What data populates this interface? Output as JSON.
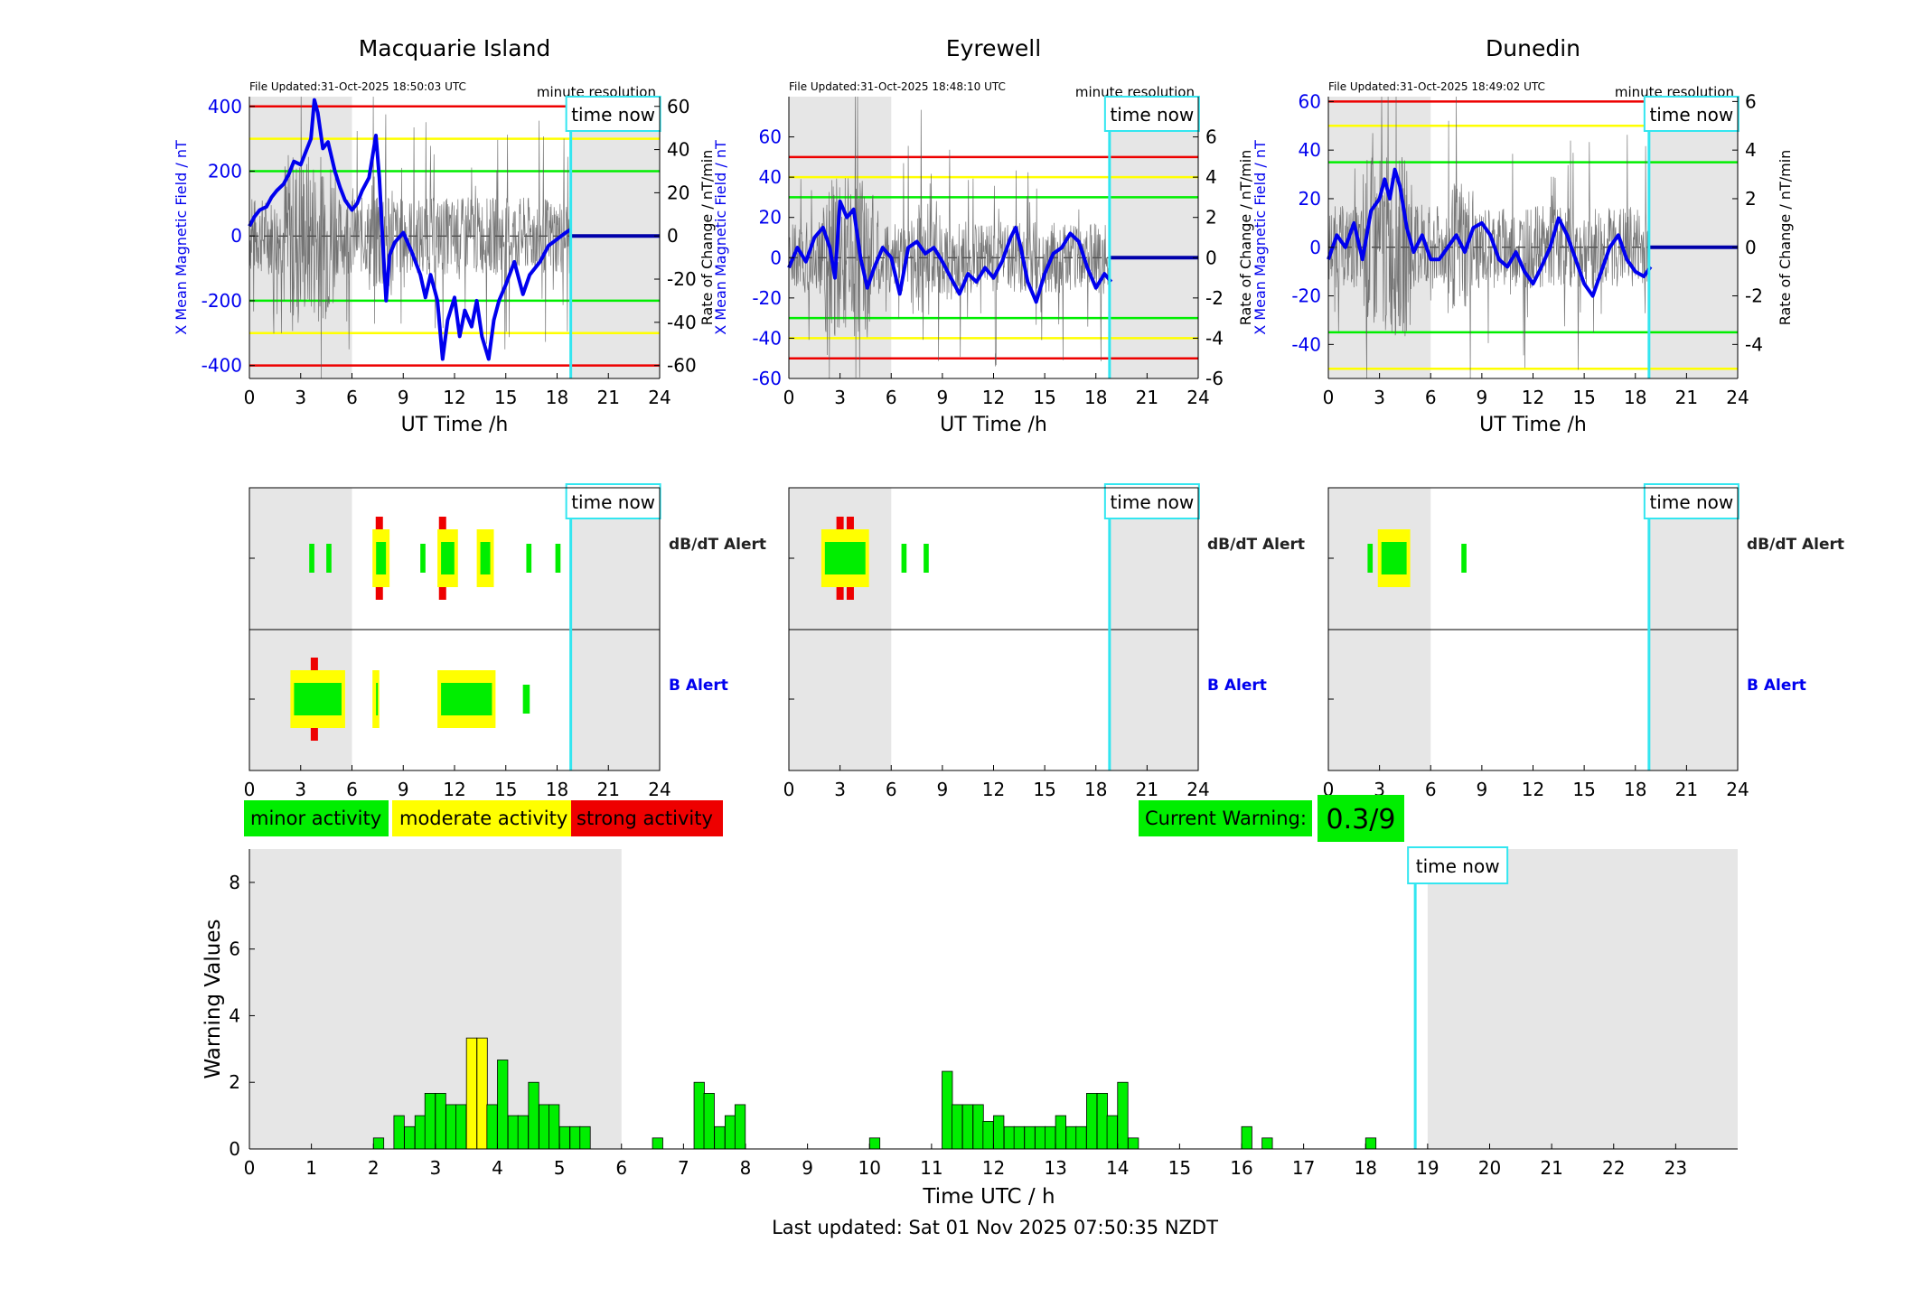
{
  "footer": {
    "last_updated": "Last updated: Sat 01 Nov 2025 07:50:35 NZDT"
  },
  "now_label": "time now",
  "minute_resolution": "minute resolution",
  "colors": {
    "x_mean": "#0000ee",
    "minor": "#00ee00",
    "moderate": "#ffff00",
    "strong": "#ee0000",
    "now_line": "#33e6f0",
    "shade": "#e6e6e6"
  },
  "legend": {
    "minor": "minor activity",
    "moderate": "moderate activity",
    "strong": "strong activity"
  },
  "current_warning": {
    "label": "Current Warning:",
    "value": "0.3/9"
  },
  "stations": [
    {
      "name": "Macquarie Island",
      "file_updated": "File Updated:31-Oct-2025 18:50:03 UTC",
      "left_ylabel": "X Mean Magnetic Field / nT",
      "right_ylabel": "Rate of Change / nT/min",
      "xlabel": "UT Time /h",
      "xticks": [
        0,
        3,
        6,
        9,
        12,
        15,
        18,
        21,
        24
      ],
      "left_yticks": [
        400,
        200,
        0,
        -200,
        -400
      ],
      "right_yticks": [
        60,
        40,
        20,
        0,
        -20,
        -40,
        -60
      ],
      "left_ylim": [
        -440,
        430
      ],
      "right_ylim": [
        -66,
        64.5
      ],
      "right_bottom_tick": "-60",
      "thresholds": {
        "minor": 200,
        "moderate": 300,
        "strong": 400
      },
      "rate_amp": 18,
      "x_mean_curve": [
        [
          0,
          30
        ],
        [
          0.3,
          60
        ],
        [
          0.6,
          80
        ],
        [
          1,
          90
        ],
        [
          1.3,
          120
        ],
        [
          1.6,
          140
        ],
        [
          2,
          160
        ],
        [
          2.3,
          190
        ],
        [
          2.6,
          230
        ],
        [
          3,
          220
        ],
        [
          3.3,
          260
        ],
        [
          3.6,
          300
        ],
        [
          3.8,
          420
        ],
        [
          4,
          380
        ],
        [
          4.3,
          270
        ],
        [
          4.6,
          290
        ],
        [
          5,
          200
        ],
        [
          5.3,
          150
        ],
        [
          5.6,
          110
        ],
        [
          6,
          80
        ],
        [
          6.3,
          100
        ],
        [
          6.6,
          140
        ],
        [
          7,
          180
        ],
        [
          7.4,
          310
        ],
        [
          7.6,
          180
        ],
        [
          7.8,
          -20
        ],
        [
          8,
          -200
        ],
        [
          8.2,
          -60
        ],
        [
          8.5,
          -20
        ],
        [
          9,
          10
        ],
        [
          9.5,
          -50
        ],
        [
          10,
          -120
        ],
        [
          10.3,
          -190
        ],
        [
          10.6,
          -120
        ],
        [
          11,
          -200
        ],
        [
          11.3,
          -380
        ],
        [
          11.6,
          -260
        ],
        [
          12,
          -190
        ],
        [
          12.3,
          -310
        ],
        [
          12.6,
          -230
        ],
        [
          13,
          -280
        ],
        [
          13.3,
          -200
        ],
        [
          13.6,
          -310
        ],
        [
          14,
          -380
        ],
        [
          14.3,
          -260
        ],
        [
          14.6,
          -200
        ],
        [
          15,
          -150
        ],
        [
          15.5,
          -80
        ],
        [
          16,
          -180
        ],
        [
          16.4,
          -120
        ],
        [
          17,
          -80
        ],
        [
          17.5,
          -30
        ],
        [
          18,
          -10
        ],
        [
          18.5,
          10
        ],
        [
          18.8,
          20
        ]
      ],
      "baseline_after_now": 0,
      "dbdt_segments": [
        {
          "start": 3.5,
          "end": 3.8,
          "level": "minor"
        },
        {
          "start": 4.5,
          "end": 4.8,
          "level": "minor"
        },
        {
          "start": 7.2,
          "end": 8.2,
          "level": "moderate"
        },
        {
          "start": 10,
          "end": 10.3,
          "level": "minor"
        },
        {
          "start": 11,
          "end": 12.2,
          "level": "moderate"
        },
        {
          "start": 13.3,
          "end": 14.3,
          "level": "moderate"
        },
        {
          "start": 16.2,
          "end": 16.5,
          "level": "minor"
        },
        {
          "start": 17.9,
          "end": 18.2,
          "level": "minor"
        }
      ],
      "dbdt_strong": [
        7.6,
        11.3
      ],
      "b_segments": [
        {
          "start": 2.4,
          "end": 5.6,
          "level": "moderate"
        },
        {
          "start": 7.2,
          "end": 7.6,
          "level": "moderate"
        },
        {
          "start": 11,
          "end": 14.4,
          "level": "moderate"
        },
        {
          "start": 16,
          "end": 16.4,
          "level": "minor"
        }
      ],
      "b_strong": [
        3.8
      ]
    },
    {
      "name": "Eyrewell",
      "file_updated": "File Updated:31-Oct-2025 18:48:10 UTC",
      "left_ylabel": "X Mean Magnetic Field / nT",
      "right_ylabel": "Rate of Change / nT/min",
      "xlabel": "UT Time /h",
      "xticks": [
        0,
        3,
        6,
        9,
        12,
        15,
        18,
        21,
        24
      ],
      "left_yticks": [
        60,
        40,
        20,
        0,
        -20,
        -40,
        -60
      ],
      "right_yticks": [
        6,
        4,
        2,
        0,
        -2,
        -4,
        -6
      ],
      "left_ylim": [
        -60,
        80
      ],
      "right_ylim": [
        -6,
        8
      ],
      "right_bottom_tick": "-6",
      "thresholds": {
        "minor": 30,
        "moderate": 40,
        "strong": 50
      },
      "rate_amp": 1.8,
      "x_mean_curve": [
        [
          0,
          -5
        ],
        [
          0.5,
          5
        ],
        [
          1,
          -2
        ],
        [
          1.5,
          10
        ],
        [
          2,
          15
        ],
        [
          2.4,
          5
        ],
        [
          2.7,
          -10
        ],
        [
          3,
          28
        ],
        [
          3.4,
          20
        ],
        [
          3.8,
          24
        ],
        [
          4.2,
          0
        ],
        [
          4.6,
          -15
        ],
        [
          5,
          -5
        ],
        [
          5.5,
          5
        ],
        [
          6,
          0
        ],
        [
          6.5,
          -18
        ],
        [
          7,
          5
        ],
        [
          7.5,
          8
        ],
        [
          8,
          2
        ],
        [
          8.5,
          5
        ],
        [
          9,
          -2
        ],
        [
          9.5,
          -10
        ],
        [
          10,
          -18
        ],
        [
          10.5,
          -8
        ],
        [
          11,
          -12
        ],
        [
          11.5,
          -5
        ],
        [
          12,
          -10
        ],
        [
          12.5,
          -2
        ],
        [
          13,
          10
        ],
        [
          13.3,
          15
        ],
        [
          13.6,
          5
        ],
        [
          14,
          -12
        ],
        [
          14.5,
          -22
        ],
        [
          15,
          -8
        ],
        [
          15.5,
          2
        ],
        [
          16,
          5
        ],
        [
          16.5,
          12
        ],
        [
          17,
          8
        ],
        [
          17.5,
          -5
        ],
        [
          18,
          -15
        ],
        [
          18.5,
          -8
        ],
        [
          18.9,
          -12
        ]
      ],
      "baseline_after_now": 0,
      "dbdt_segments": [
        {
          "start": 1.9,
          "end": 4.7,
          "level": "moderate"
        },
        {
          "start": 6.6,
          "end": 6.9,
          "level": "minor"
        },
        {
          "start": 7.9,
          "end": 8.2,
          "level": "minor"
        }
      ],
      "dbdt_strong": [
        3,
        3.6
      ],
      "b_segments": [],
      "b_strong": []
    },
    {
      "name": "Dunedin",
      "file_updated": "File Updated:31-Oct-2025 18:49:02 UTC",
      "left_ylabel": "X Mean Magnetic Field / nT",
      "right_ylabel": "Rate of Change / nT/min",
      "xlabel": "UT Time /h",
      "xticks": [
        0,
        3,
        6,
        9,
        12,
        15,
        18,
        21,
        24
      ],
      "left_yticks": [
        60,
        40,
        20,
        0,
        -20,
        -40
      ],
      "right_yticks": [
        6,
        4,
        2,
        0,
        -2,
        -4
      ],
      "left_ylim": [
        -54,
        62
      ],
      "right_ylim": [
        -5.4,
        6.2
      ],
      "right_bottom_tick": "",
      "thresholds": {
        "minor": 35,
        "moderate": 50,
        "strong": 60
      },
      "rate_amp": 1.7,
      "x_mean_curve": [
        [
          0,
          -5
        ],
        [
          0.5,
          5
        ],
        [
          1,
          0
        ],
        [
          1.5,
          10
        ],
        [
          2,
          -5
        ],
        [
          2.5,
          15
        ],
        [
          3,
          20
        ],
        [
          3.3,
          28
        ],
        [
          3.6,
          20
        ],
        [
          3.9,
          32
        ],
        [
          4.2,
          25
        ],
        [
          4.6,
          8
        ],
        [
          5,
          -2
        ],
        [
          5.5,
          5
        ],
        [
          6,
          -5
        ],
        [
          6.5,
          -5
        ],
        [
          7,
          0
        ],
        [
          7.5,
          5
        ],
        [
          8,
          -2
        ],
        [
          8.5,
          8
        ],
        [
          9,
          10
        ],
        [
          9.5,
          5
        ],
        [
          10,
          -5
        ],
        [
          10.5,
          -8
        ],
        [
          11,
          -2
        ],
        [
          11.5,
          -10
        ],
        [
          12,
          -15
        ],
        [
          12.5,
          -8
        ],
        [
          13,
          0
        ],
        [
          13.5,
          12
        ],
        [
          14,
          5
        ],
        [
          14.5,
          -5
        ],
        [
          15,
          -15
        ],
        [
          15.5,
          -20
        ],
        [
          16,
          -10
        ],
        [
          16.5,
          0
        ],
        [
          17,
          5
        ],
        [
          17.5,
          -5
        ],
        [
          18,
          -10
        ],
        [
          18.5,
          -12
        ],
        [
          18.9,
          -8
        ]
      ],
      "baseline_after_now": 0,
      "dbdt_segments": [
        {
          "start": 2.3,
          "end": 2.6,
          "level": "minor"
        },
        {
          "start": 2.9,
          "end": 4.8,
          "level": "moderate"
        },
        {
          "start": 7.8,
          "end": 8.1,
          "level": "minor"
        }
      ],
      "dbdt_strong": [],
      "b_segments": [],
      "b_strong": []
    }
  ],
  "alert_labels": {
    "dbdt": "dB/dT Alert",
    "b": "B Alert"
  },
  "chart_data": {
    "type": "bar",
    "ylabel": "Warning Values",
    "xlabel": "Time UTC / h",
    "xlim": [
      0,
      24
    ],
    "ylim": [
      0,
      9
    ],
    "xticks": [
      0,
      1,
      2,
      3,
      4,
      5,
      6,
      7,
      8,
      9,
      10,
      11,
      12,
      13,
      14,
      15,
      16,
      17,
      18,
      19,
      20,
      21,
      22,
      23
    ],
    "yticks": [
      0,
      2,
      4,
      6,
      8
    ],
    "now_hour": 18.8,
    "bin_width": 0.1667,
    "x": [
      2.0,
      2.33,
      2.5,
      2.67,
      2.83,
      3.0,
      3.17,
      3.33,
      3.5,
      3.67,
      3.83,
      4.0,
      4.17,
      4.33,
      4.5,
      4.67,
      4.83,
      5.0,
      5.17,
      5.33,
      6.5,
      7.17,
      7.33,
      7.5,
      7.67,
      7.83,
      10.0,
      11.17,
      11.33,
      11.5,
      11.67,
      11.83,
      12.0,
      12.17,
      12.33,
      12.5,
      12.67,
      12.83,
      13.0,
      13.17,
      13.33,
      13.5,
      13.67,
      13.83,
      14.0,
      14.17,
      16.0,
      16.33,
      18.0
    ],
    "values": [
      0.33,
      1.0,
      0.67,
      1.0,
      1.67,
      1.67,
      1.33,
      1.33,
      3.33,
      3.33,
      1.33,
      2.67,
      1.0,
      1.0,
      2.0,
      1.33,
      1.33,
      0.67,
      0.67,
      0.67,
      0.33,
      2.0,
      1.67,
      0.67,
      1.0,
      1.33,
      0.33,
      2.33,
      1.33,
      1.33,
      1.33,
      0.83,
      1.0,
      0.67,
      0.67,
      0.67,
      0.67,
      0.67,
      1.0,
      0.67,
      0.67,
      1.67,
      1.67,
      1.0,
      2.0,
      0.33,
      0.67,
      0.33,
      0.33
    ],
    "levels": [
      "minor",
      "minor",
      "minor",
      "minor",
      "minor",
      "minor",
      "minor",
      "minor",
      "moderate",
      "moderate",
      "minor",
      "minor",
      "minor",
      "minor",
      "minor",
      "minor",
      "minor",
      "minor",
      "minor",
      "minor",
      "minor",
      "minor",
      "minor",
      "minor",
      "minor",
      "minor",
      "minor",
      "minor",
      "minor",
      "minor",
      "minor",
      "minor",
      "minor",
      "minor",
      "minor",
      "minor",
      "minor",
      "minor",
      "minor",
      "minor",
      "minor",
      "minor",
      "minor",
      "minor",
      "minor",
      "minor",
      "minor",
      "minor",
      "minor"
    ]
  }
}
